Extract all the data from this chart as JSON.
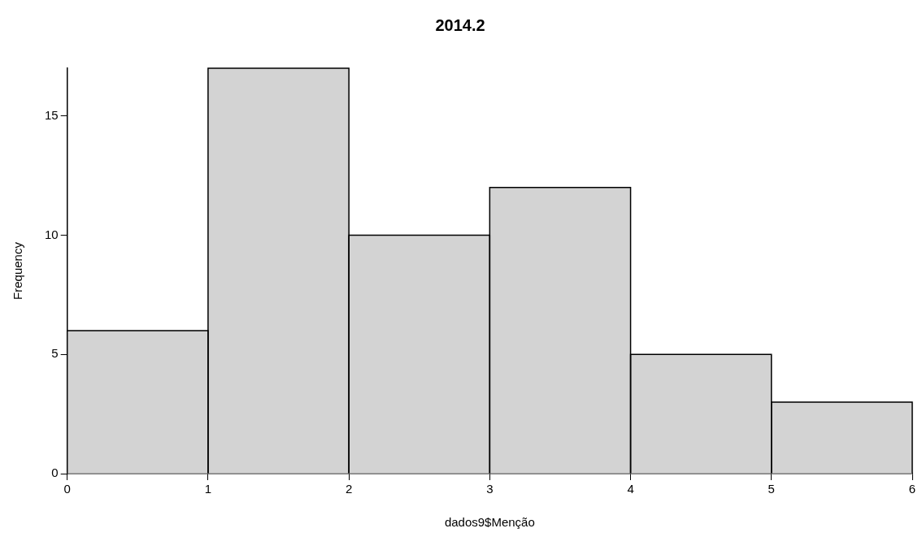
{
  "chart_data": {
    "type": "histogram",
    "title": "2014.2",
    "xlabel": "dados9$Menção",
    "ylabel": "Frequency",
    "bins": [
      0,
      1,
      2,
      3,
      4,
      5,
      6
    ],
    "values": [
      6,
      17,
      10,
      12,
      5,
      3
    ],
    "color": "#d3d3d3",
    "xlim": [
      0,
      6
    ],
    "xticks": [
      0,
      1,
      2,
      3,
      4,
      5,
      6
    ],
    "ylim": [
      0,
      17
    ],
    "yticks": [
      0,
      5,
      10,
      15
    ],
    "grid": false
  }
}
